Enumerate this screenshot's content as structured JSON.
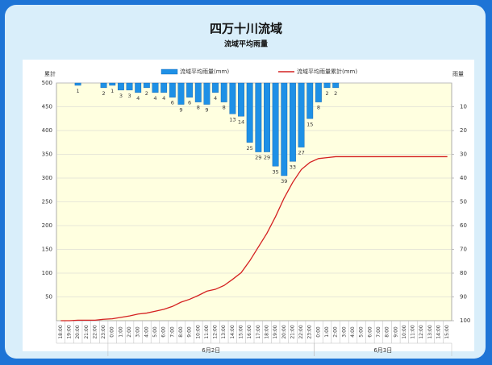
{
  "chart_data": {
    "type": "bar_line",
    "title": "四万十川流域",
    "subtitle": "流域平均雨量",
    "ylabel": "累計",
    "y2label": "雨量",
    "categories": [
      "18:00",
      "19:00",
      "20:00",
      "21:00",
      "22:00",
      "23:00",
      "0:00",
      "1:00",
      "2:00",
      "3:00",
      "4:00",
      "5:00",
      "6:00",
      "7:00",
      "8:00",
      "9:00",
      "10:00",
      "11:00",
      "12:00",
      "13:00",
      "14:00",
      "15:00",
      "16:00",
      "17:00",
      "18:00",
      "19:00",
      "20:00",
      "21:00",
      "22:00",
      "23:00",
      "0:00",
      "1:00",
      "2:00",
      "3:00",
      "4:00",
      "5:00",
      "6:00",
      "7:00",
      "8:00",
      "9:00",
      "10:00",
      "11:00",
      "12:00",
      "13:00",
      "14:00",
      "15:00"
    ],
    "groups": [
      {
        "label": "6月2日",
        "from": 6,
        "to": 29
      },
      {
        "label": "6月3日",
        "from": 30,
        "to": 45
      }
    ],
    "series": [
      {
        "name": "流域平均雨量(mm)",
        "type": "bar",
        "axis": "y2",
        "color": "#1e90e6",
        "values": [
          0,
          0,
          1,
          0,
          0,
          2,
          1,
          3,
          3,
          4,
          2,
          4,
          4,
          6,
          9,
          6,
          8,
          9,
          4,
          8,
          13,
          14,
          25,
          29,
          29,
          35,
          39,
          33,
          27,
          15,
          8,
          2,
          2,
          0,
          0,
          0,
          0,
          0,
          0,
          0,
          0,
          0,
          0,
          0,
          0,
          0
        ]
      },
      {
        "name": "流域平均雨量累計(mm)",
        "type": "line",
        "axis": "y",
        "color": "#d42020",
        "values": [
          0,
          0,
          1,
          1,
          1,
          3,
          4,
          7,
          10,
          14,
          16,
          20,
          24,
          30,
          39,
          45,
          53,
          62,
          66,
          74,
          87,
          101,
          126,
          155,
          184,
          219,
          258,
          291,
          318,
          333,
          341,
          343,
          345,
          345,
          345,
          345,
          345,
          345,
          345,
          345,
          345,
          345,
          345,
          345,
          345,
          345
        ]
      }
    ],
    "ylim": [
      0,
      500
    ],
    "yticks": [
      50,
      100,
      150,
      200,
      250,
      300,
      350,
      400,
      450,
      500
    ],
    "y2lim": [
      0,
      100
    ],
    "y2ticks": [
      10,
      20,
      30,
      40,
      50,
      60,
      70,
      80,
      90,
      100
    ],
    "y2_inverted": true,
    "grid": true
  }
}
